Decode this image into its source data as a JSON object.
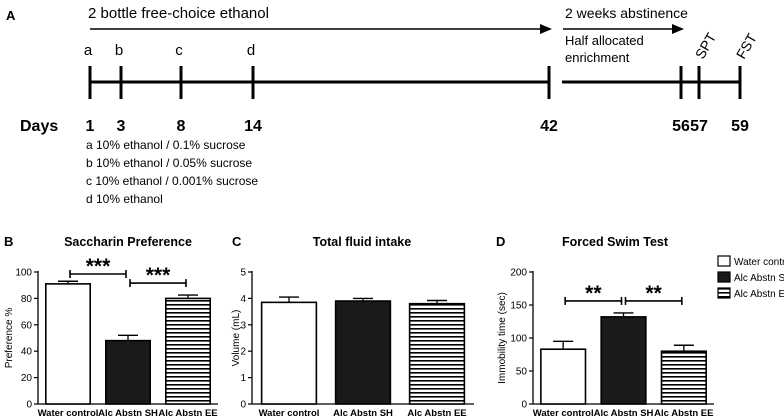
{
  "timeline": {
    "panel_label": "A",
    "phase1_label": "2 bottle free-choice  ethanol",
    "phase2_label": "2 weeks abstinence",
    "half_allocated": [
      "Half allocated",
      "enrichment"
    ],
    "days_label": "Days",
    "marks": [
      {
        "day": "1",
        "letter": "a"
      },
      {
        "day": "3",
        "letter": "b"
      },
      {
        "day": "8",
        "letter": "c"
      },
      {
        "day": "14",
        "letter": "d"
      },
      {
        "day": "42",
        "letter": ""
      },
      {
        "day": "56",
        "letter": ""
      },
      {
        "day": "57",
        "letter": "SPT"
      },
      {
        "day": "59",
        "letter": "FST"
      }
    ],
    "legend_lines": [
      "a  10% ethanol / 0.1% sucrose",
      "b  10% ethanol / 0.05% sucrose",
      "c  10% ethanol / 0.001% sucrose",
      "d  10% ethanol"
    ]
  },
  "legend": {
    "entries": [
      {
        "name": "Water control",
        "style": "open"
      },
      {
        "name": "Alc Abstn SH",
        "style": "filled"
      },
      {
        "name": "Alc Abstn EE",
        "style": "striped"
      }
    ]
  },
  "chart_data": [
    {
      "panel": "B",
      "type": "bar",
      "title": "Saccharin Preference",
      "xlabel": "",
      "ylabel": "Preference %",
      "categories": [
        "Water control",
        "Alc Abstn SH",
        "Alc Abstn EE"
      ],
      "values": [
        91,
        48,
        80
      ],
      "errors": [
        2,
        4,
        2.5
      ],
      "ylim": [
        0,
        100
      ],
      "yticks": [
        0,
        20,
        40,
        60,
        80,
        100
      ],
      "significance": [
        {
          "from": 0,
          "to": 1,
          "label": "***"
        },
        {
          "from": 1,
          "to": 2,
          "label": "***"
        }
      ]
    },
    {
      "panel": "C",
      "type": "bar",
      "title": "Total fluid intake",
      "xlabel": "",
      "ylabel": "Volume (mL)",
      "categories": [
        "Water control",
        "Alc Abstn SH",
        "Alc Abstn EE"
      ],
      "values": [
        3.85,
        3.9,
        3.8
      ],
      "errors": [
        0.2,
        0.1,
        0.12
      ],
      "ylim": [
        0,
        5
      ],
      "yticks": [
        0,
        1,
        2,
        3,
        4,
        5
      ],
      "significance": []
    },
    {
      "panel": "D",
      "type": "bar",
      "title": "Forced Swim Test",
      "xlabel": "",
      "ylabel": "Immobility time (sec)",
      "categories": [
        "Water control",
        "Alc Abstn SH",
        "Alc Abstn EE"
      ],
      "values": [
        83,
        132,
        80
      ],
      "errors": [
        12,
        6,
        9
      ],
      "ylim": [
        0,
        200
      ],
      "yticks": [
        0,
        50,
        100,
        150,
        200
      ],
      "significance": [
        {
          "from": 0,
          "to": 1,
          "label": "**"
        },
        {
          "from": 1,
          "to": 2,
          "label": "**"
        }
      ]
    }
  ]
}
